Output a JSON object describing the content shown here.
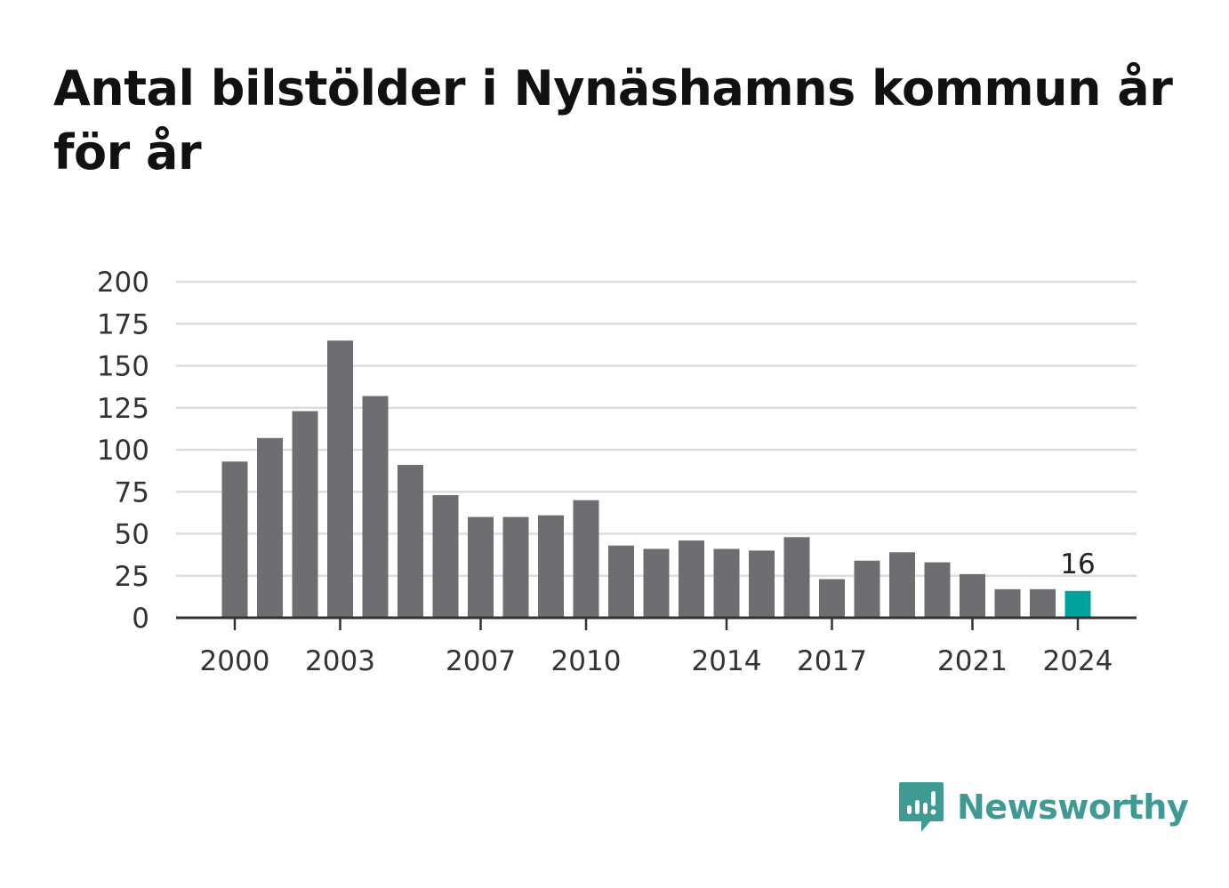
{
  "title": "Antal bilstölder i Nynäshamns kommun år för år",
  "brand": {
    "name": "Newsworthy",
    "icon": "newsworthy-logo-icon"
  },
  "colors": {
    "bar": "#6e6d72",
    "highlight": "#00a39b",
    "grid": "#dddddd",
    "axis": "#333333",
    "brand": "#3f9a93"
  },
  "chart_data": {
    "type": "bar",
    "title": "Antal bilstölder i Nynäshamns kommun år för år",
    "xlabel": "",
    "ylabel": "",
    "categories": [
      "2000",
      "2001",
      "2002",
      "2003",
      "2004",
      "2005",
      "2006",
      "2007",
      "2008",
      "2009",
      "2010",
      "2011",
      "2012",
      "2013",
      "2014",
      "2015",
      "2016",
      "2017",
      "2018",
      "2019",
      "2020",
      "2021",
      "2022",
      "2023",
      "2024"
    ],
    "values": [
      93,
      107,
      123,
      165,
      132,
      91,
      73,
      60,
      60,
      61,
      70,
      43,
      41,
      46,
      41,
      40,
      48,
      23,
      34,
      39,
      33,
      26,
      17,
      17,
      16
    ],
    "ylim": [
      0,
      200
    ],
    "yticks": [
      0,
      25,
      50,
      75,
      100,
      125,
      150,
      175,
      200
    ],
    "xtick_labels": [
      "2000",
      "2003",
      "2007",
      "2010",
      "2014",
      "2017",
      "2021",
      "2024"
    ],
    "highlight": {
      "category": "2024",
      "value": 16,
      "label": "16"
    },
    "grid": true,
    "legend": "none"
  }
}
